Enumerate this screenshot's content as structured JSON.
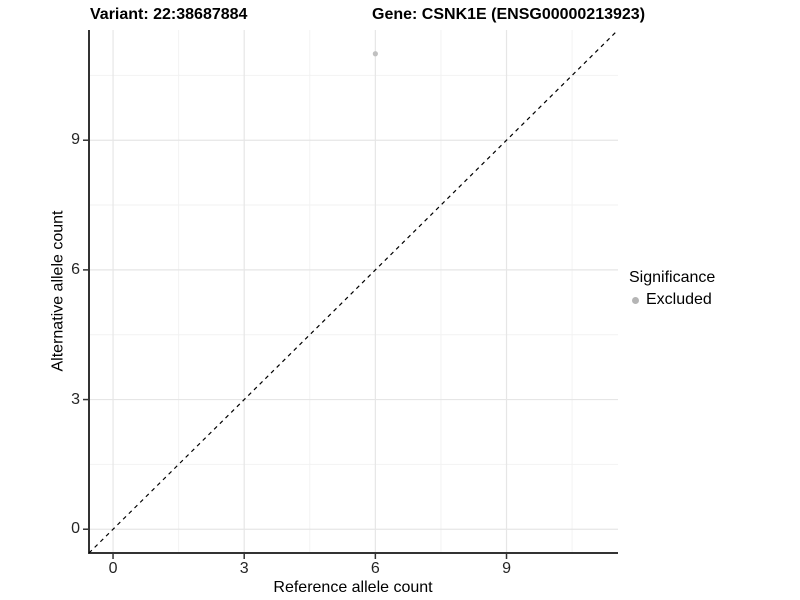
{
  "figure": {
    "title_left": "Variant: 22:38687884",
    "title_right": "Gene: CSNK1E (ENSG00000213923)"
  },
  "chart_data": {
    "type": "scatter",
    "xlabel": "Reference allele count",
    "ylabel": "Alternative allele count",
    "xlim": [
      -0.55,
      11.55
    ],
    "ylim": [
      -0.55,
      11.55
    ],
    "x_major_ticks": [
      0,
      3,
      6,
      9
    ],
    "y_major_ticks": [
      0,
      3,
      6,
      9
    ],
    "x_minor_ticks": [
      1.5,
      4.5,
      7.5,
      10.5
    ],
    "y_minor_ticks": [
      1.5,
      4.5,
      7.5,
      10.5
    ],
    "grid": "major+minor",
    "points": [
      {
        "x": 6,
        "y": 11,
        "series": "Excluded"
      }
    ],
    "reference_line": {
      "slope": 1,
      "intercept": 0,
      "style": "dashed"
    },
    "legend": {
      "title": "Significance",
      "position": "right",
      "entries": [
        {
          "label": "Excluded",
          "marker": "circle",
          "color": "#b5b5b5"
        }
      ]
    },
    "colors": {
      "background": "#ffffff",
      "grid_major": "#e6e6e6",
      "grid_minor": "#f2f2f2",
      "axis_line": "#333333",
      "tick_label": "#262626",
      "point": "#c0c0c0",
      "reference_line": "#000000"
    }
  }
}
